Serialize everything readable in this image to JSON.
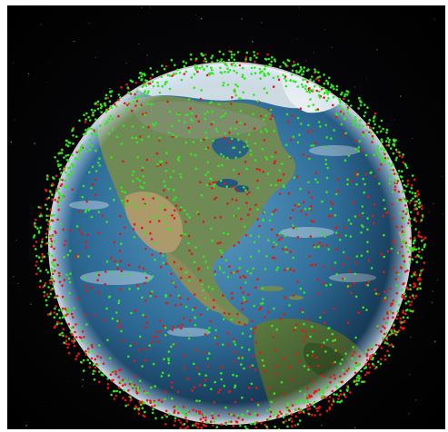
{
  "image": {
    "subject": "satellite-constellation-over-earth",
    "background_color": "#000000",
    "colors": {
      "satellite_green": "#35e61f",
      "satellite_red": "#e01a12",
      "ocean_deep": "#1d4f7a",
      "ocean_shallow": "#4f8fb4",
      "land_green": "#5e7f49",
      "land_desert": "#b7a073",
      "ice": "#e6edf2",
      "atmosphere": "#cfe6ff"
    },
    "satellite_groups": [
      "green",
      "red"
    ]
  }
}
